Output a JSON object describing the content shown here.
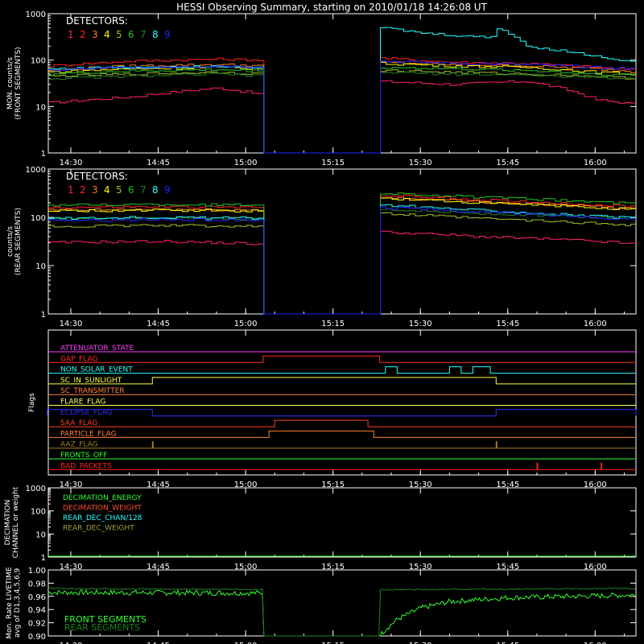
{
  "title": "HESSI Observing Summary, starting on 2010/01/18 14:26:08 UT",
  "time_ticks": [
    "14:30",
    "14:45",
    "15:00",
    "15:15",
    "15:30",
    "15:45",
    "16:00"
  ],
  "detectors_label": "DETECTORS:",
  "detector_numbers": [
    "1",
    "2",
    "3",
    "4",
    "5",
    "6",
    "7",
    "8",
    "9"
  ],
  "colors": {
    "background": "#000000",
    "axes": "#ffffff",
    "detectors": [
      "#ff2060",
      "#ff2020",
      "#ff8020",
      "#ffff00",
      "#a0c020",
      "#20c020",
      "#208020",
      "#20ffff",
      "#2020ff"
    ],
    "flags": {
      "attenuator": "#ff40ff",
      "gap": "#ff3020",
      "non_solar": "#30ffff",
      "sunlight": "#ffff40",
      "transmitter": "#ff8040",
      "flare": "#ffff60",
      "eclipse": "#3030ff",
      "saa": "#ff4020",
      "particle": "#ff8030",
      "aaz": "#a08020",
      "fronts_off": "#30ff30",
      "bad_packets": "#ff2020"
    },
    "decimation": {
      "energy": "#30ff30",
      "weight": "#ff5030",
      "rear_chan": "#30ffff",
      "rear_weight": "#a0a040"
    },
    "livetime": {
      "front": "#30ff30",
      "rear": "#208020"
    }
  },
  "chart_data": [
    {
      "type": "line",
      "panel": "front",
      "ylabel": "MON. counts/s",
      "ylabel2": "(FRONT SEGMENTS)",
      "yscale": "log",
      "ylim": [
        1,
        1000
      ],
      "ytick_labels": [
        "1",
        "10",
        "100",
        "1000"
      ],
      "xlim": [
        "14:26",
        "16:07"
      ],
      "gap": [
        "15:03",
        "15:23"
      ],
      "series": [
        {
          "name": "1",
          "x": [
            "14:26",
            "14:40",
            "14:55",
            "15:03",
            "15:23",
            "15:35",
            "15:48",
            "16:00",
            "16:07"
          ],
          "y": [
            12,
            16,
            25,
            18,
            35,
            30,
            35,
            14,
            11
          ]
        },
        {
          "name": "2",
          "x": [
            "14:26",
            "14:40",
            "14:55",
            "15:03",
            "15:23",
            "15:35",
            "15:48",
            "16:00",
            "16:07"
          ],
          "y": [
            75,
            95,
            105,
            100,
            110,
            90,
            85,
            70,
            60
          ]
        },
        {
          "name": "3",
          "x": [
            "14:26",
            "14:40",
            "14:55",
            "15:03",
            "15:23",
            "15:35",
            "15:48",
            "16:00",
            "16:07"
          ],
          "y": [
            60,
            75,
            80,
            75,
            90,
            80,
            75,
            65,
            55
          ]
        },
        {
          "name": "4",
          "x": [
            "14:26",
            "14:40",
            "14:55",
            "15:03",
            "15:23",
            "15:35",
            "15:48",
            "16:00",
            "16:07"
          ],
          "y": [
            55,
            65,
            70,
            65,
            85,
            75,
            70,
            55,
            50
          ]
        },
        {
          "name": "5",
          "x": [
            "14:26",
            "14:40",
            "14:55",
            "15:03",
            "15:23",
            "15:35",
            "15:48",
            "16:00",
            "16:07"
          ],
          "y": [
            45,
            50,
            55,
            50,
            60,
            55,
            50,
            45,
            40
          ]
        },
        {
          "name": "6",
          "x": [
            "14:26",
            "14:40",
            "14:55",
            "15:03",
            "15:23",
            "15:35",
            "15:48",
            "16:00",
            "16:07"
          ],
          "y": [
            50,
            58,
            62,
            58,
            70,
            65,
            60,
            50,
            48
          ]
        },
        {
          "name": "7",
          "x": [
            "14:26",
            "14:40",
            "14:55",
            "15:03",
            "15:23",
            "15:35",
            "15:48",
            "16:00",
            "16:07"
          ],
          "y": [
            40,
            45,
            50,
            45,
            55,
            50,
            48,
            42,
            40
          ]
        },
        {
          "name": "8",
          "x": [
            "14:26",
            "14:40",
            "14:55",
            "15:03",
            "15:23",
            "15:30",
            "15:42",
            "15:43",
            "15:48",
            "16:00",
            "16:07"
          ],
          "y": [
            65,
            70,
            75,
            70,
            500,
            380,
            300,
            500,
            200,
            120,
            90
          ]
        },
        {
          "name": "9",
          "x": [
            "14:26",
            "14:40",
            "14:55",
            "15:03",
            "15:23",
            "15:35",
            "15:48",
            "16:00",
            "16:07"
          ],
          "y": [
            60,
            70,
            75,
            72,
            95,
            85,
            80,
            70,
            65
          ]
        }
      ]
    },
    {
      "type": "line",
      "panel": "rear",
      "ylabel": "counts/s",
      "ylabel2": "(REAR SEGMENTS)",
      "yscale": "log",
      "ylim": [
        1,
        1000
      ],
      "ytick_labels": [
        "1",
        "10",
        "100",
        "1000"
      ],
      "xlim": [
        "14:26",
        "16:07"
      ],
      "gap": [
        "15:03",
        "15:23"
      ],
      "series": [
        {
          "name": "1",
          "x": [
            "14:26",
            "14:45",
            "15:03",
            "15:23",
            "15:40",
            "16:00",
            "16:07"
          ],
          "y": [
            30,
            32,
            28,
            50,
            40,
            32,
            28
          ]
        },
        {
          "name": "2",
          "x": [
            "14:26",
            "14:45",
            "15:03",
            "15:23",
            "15:40",
            "16:00",
            "16:07"
          ],
          "y": [
            160,
            165,
            160,
            290,
            230,
            180,
            165
          ]
        },
        {
          "name": "3",
          "x": [
            "14:26",
            "14:45",
            "15:03",
            "15:23",
            "15:40",
            "16:00",
            "16:07"
          ],
          "y": [
            140,
            145,
            140,
            260,
            210,
            165,
            150
          ]
        },
        {
          "name": "4",
          "x": [
            "14:26",
            "14:45",
            "15:03",
            "15:23",
            "15:40",
            "16:00",
            "16:07"
          ],
          "y": [
            135,
            140,
            135,
            250,
            200,
            160,
            145
          ]
        },
        {
          "name": "5",
          "x": [
            "14:26",
            "14:45",
            "15:03",
            "15:23",
            "15:40",
            "16:00",
            "16:07"
          ],
          "y": [
            65,
            68,
            66,
            120,
            95,
            75,
            70
          ]
        },
        {
          "name": "6",
          "x": [
            "14:26",
            "14:45",
            "15:03",
            "15:23",
            "15:40",
            "16:00",
            "16:07"
          ],
          "y": [
            180,
            185,
            180,
            320,
            260,
            210,
            190
          ]
        },
        {
          "name": "7",
          "x": [
            "14:26",
            "14:45",
            "15:03",
            "15:23",
            "15:40",
            "16:00",
            "16:07"
          ],
          "y": [
            90,
            95,
            92,
            150,
            120,
            100,
            95
          ]
        },
        {
          "name": "8",
          "x": [
            "14:26",
            "14:45",
            "15:03",
            "15:23",
            "15:40",
            "16:00",
            "16:07"
          ],
          "y": [
            95,
            100,
            96,
            180,
            140,
            105,
            95
          ]
        },
        {
          "name": "9",
          "x": [
            "14:26",
            "14:45",
            "15:03",
            "15:23",
            "15:40",
            "16:00",
            "16:07"
          ],
          "y": [
            85,
            90,
            88,
            160,
            130,
            100,
            90
          ]
        }
      ]
    },
    {
      "type": "line",
      "panel": "flags",
      "ylabel": "Flags",
      "flags": [
        {
          "key": "attenuator",
          "name": "ATTENUATOR_STATE",
          "intervals": []
        },
        {
          "key": "gap",
          "name": "GAP_FLAG",
          "intervals": [
            [
              "15:03",
              "15:23"
            ]
          ]
        },
        {
          "key": "non_solar",
          "name": "NON_SOLAR_EVENT",
          "intervals": [
            [
              "15:24",
              "15:26"
            ],
            [
              "15:35",
              "15:37"
            ],
            [
              "15:39",
              "15:42"
            ]
          ]
        },
        {
          "key": "sunlight",
          "name": "SC_IN_SUNLIGHT",
          "intervals": [
            [
              "14:44",
              "15:43"
            ]
          ]
        },
        {
          "key": "transmitter",
          "name": "SC_TRANSMITTER",
          "intervals": []
        },
        {
          "key": "flare",
          "name": "FLARE_FLAG",
          "intervals": []
        },
        {
          "key": "eclipse",
          "name": "ECLIPSE_FLAG",
          "intervals": [
            [
              "14:26",
              "14:44"
            ],
            [
              "15:43",
              "16:07"
            ]
          ]
        },
        {
          "key": "saa",
          "name": "SAA_FLAG",
          "intervals": [
            [
              "15:05",
              "15:21"
            ]
          ]
        },
        {
          "key": "particle",
          "name": "PARTICLE_FLAG",
          "intervals": [
            [
              "15:04",
              "15:22"
            ]
          ]
        },
        {
          "key": "aaz",
          "name": "AAZ_FLAG",
          "intervals": [
            [
              "14:44",
              "14:44"
            ],
            [
              "15:43",
              "15:43"
            ]
          ]
        },
        {
          "key": "fronts_off",
          "name": "FRONTS_OFF",
          "intervals": []
        },
        {
          "key": "bad_packets",
          "name": "BAD_PACKETS",
          "intervals": [
            [
              "15:50",
              "15:50"
            ],
            [
              "16:01",
              "16:01"
            ]
          ]
        }
      ]
    },
    {
      "type": "line",
      "panel": "decimation",
      "ylabel": "DECIMATION",
      "ylabel2": "CHANNEL or weight",
      "yscale": "log",
      "ylim": [
        1,
        1000
      ],
      "ytick_labels": [
        "1",
        "10",
        "100",
        "1000"
      ],
      "legend": [
        {
          "key": "energy",
          "name": "DECIMATION_ENERGY"
        },
        {
          "key": "weight",
          "name": "DECIMATION_WEIGHT"
        },
        {
          "key": "rear_chan",
          "name": "REAR_DEC_CHAN/128"
        },
        {
          "key": "rear_weight",
          "name": "REAR_DEC_WEIGHT"
        }
      ]
    },
    {
      "type": "line",
      "panel": "livetime",
      "ylabel": "Mon. Rate LIVETIME",
      "ylabel2": "avg of D1,3,4,5,6,9",
      "ylim": [
        0.9,
        1.0
      ],
      "ytick_labels": [
        "0.90",
        "0.92",
        "0.94",
        "0.96",
        "0.98",
        "1.00"
      ],
      "series": [
        {
          "key": "front",
          "name": "FRONT SEGMENTS",
          "x": [
            "14:26",
            "15:03",
            "15:23",
            "15:24",
            "15:26",
            "15:30",
            "15:35",
            "15:45",
            "16:07"
          ],
          "y": [
            0.966,
            0.965,
            0.9,
            0.91,
            0.925,
            0.942,
            0.952,
            0.958,
            0.962
          ]
        },
        {
          "key": "rear",
          "name": "REAR SEGMENTS",
          "x": [
            "14:26",
            "15:03",
            "15:23",
            "16:07"
          ],
          "y": [
            0.972,
            0.97,
            0.97,
            0.972
          ]
        }
      ]
    }
  ]
}
